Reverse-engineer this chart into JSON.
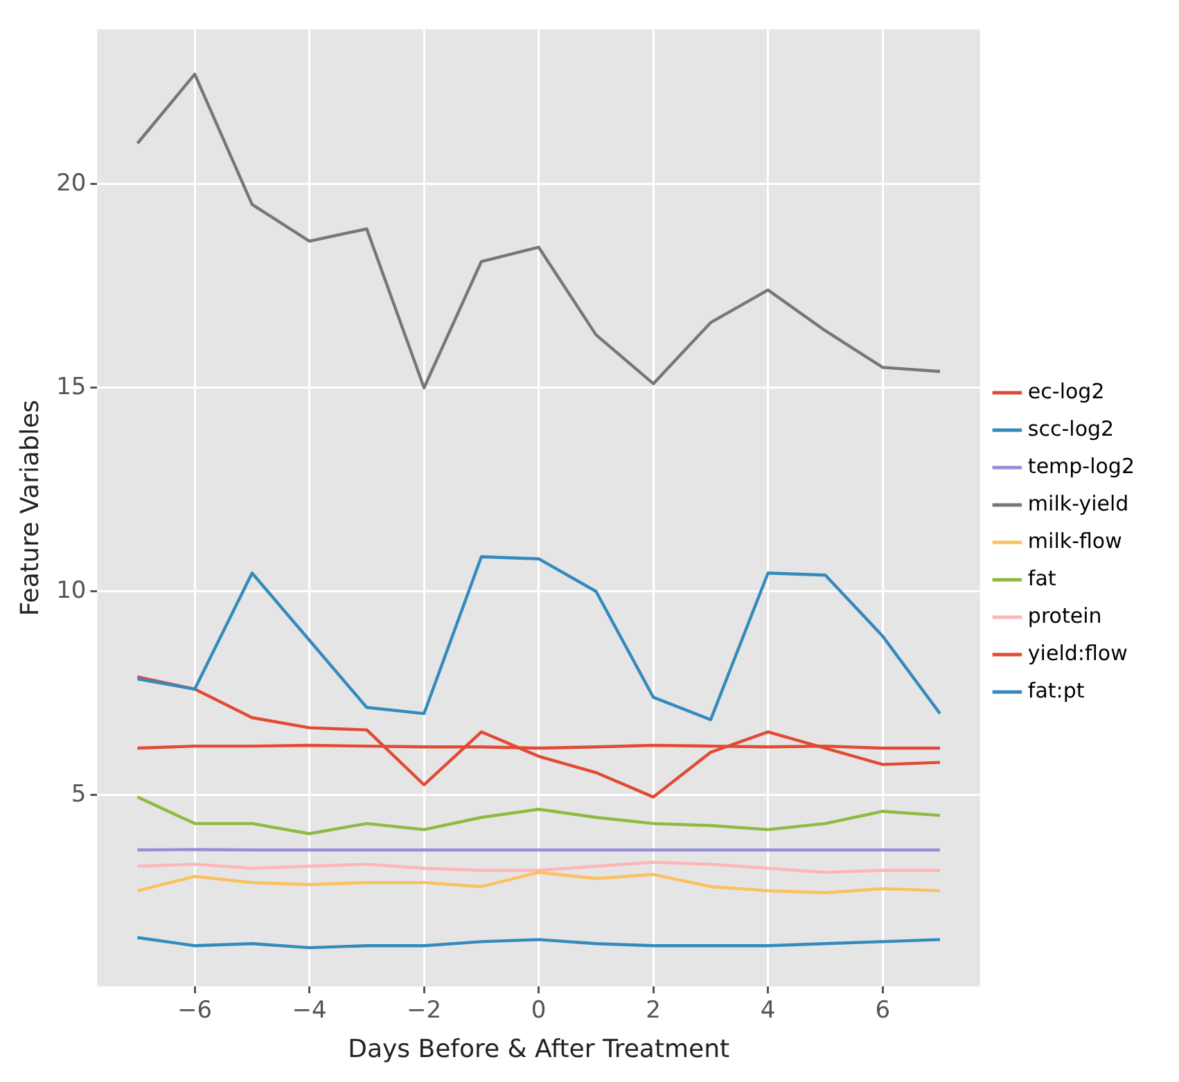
{
  "chart_data": {
    "type": "line",
    "xlabel": "Days Before & After Treatment",
    "ylabel": "Feature Variables",
    "x": [
      -7,
      -6,
      -5,
      -4,
      -3,
      -2,
      -1,
      0,
      1,
      2,
      3,
      4,
      5,
      6,
      7
    ],
    "xlim": [
      -7.7,
      7.7
    ],
    "xticks": [
      -6,
      -4,
      -2,
      0,
      2,
      4,
      6
    ],
    "ylim": [
      0.3,
      23.8
    ],
    "yticks": [
      5,
      10,
      15,
      20
    ],
    "grid": true,
    "legend": "right",
    "marker": "none",
    "line_style": "solid",
    "series": [
      {
        "name": "ec-log2",
        "color": "#e24a33",
        "values": [
          6.15,
          6.2,
          6.2,
          6.22,
          6.2,
          6.18,
          6.18,
          6.15,
          6.18,
          6.22,
          6.2,
          6.18,
          6.2,
          6.15,
          6.15
        ]
      },
      {
        "name": "scc-log2",
        "color": "#348abd",
        "values": [
          7.85,
          7.6,
          10.45,
          8.8,
          7.15,
          7.0,
          10.85,
          10.8,
          10.0,
          7.4,
          6.85,
          10.45,
          10.4,
          8.9,
          7.0
        ]
      },
      {
        "name": "temp-log2",
        "color": "#988ed5",
        "values": [
          3.65,
          3.66,
          3.65,
          3.65,
          3.65,
          3.65,
          3.65,
          3.65,
          3.65,
          3.65,
          3.65,
          3.65,
          3.65,
          3.65,
          3.65
        ]
      },
      {
        "name": "milk-yield",
        "color": "#777777",
        "values": [
          21.0,
          22.7,
          19.5,
          18.6,
          18.9,
          15.0,
          18.1,
          18.45,
          16.3,
          15.1,
          16.6,
          17.4,
          16.4,
          15.5,
          15.4
        ]
      },
      {
        "name": "milk-flow",
        "color": "#fbc15e",
        "values": [
          2.65,
          3.0,
          2.85,
          2.8,
          2.85,
          2.85,
          2.75,
          3.1,
          2.95,
          3.05,
          2.75,
          2.65,
          2.6,
          2.7,
          2.65
        ]
      },
      {
        "name": "fat",
        "color": "#8eba42",
        "values": [
          4.95,
          4.3,
          4.3,
          4.05,
          4.3,
          4.15,
          4.45,
          4.65,
          4.45,
          4.3,
          4.25,
          4.15,
          4.3,
          4.6,
          4.5
        ]
      },
      {
        "name": "protein",
        "color": "#ffb5b8",
        "values": [
          3.25,
          3.3,
          3.2,
          3.25,
          3.3,
          3.2,
          3.15,
          3.15,
          3.25,
          3.35,
          3.3,
          3.2,
          3.1,
          3.15,
          3.15
        ]
      },
      {
        "name": "yield:flow",
        "color": "#e24a33",
        "values": [
          7.9,
          7.6,
          6.9,
          6.65,
          6.6,
          5.25,
          6.55,
          5.95,
          5.55,
          4.95,
          6.05,
          6.55,
          6.15,
          5.75,
          5.8
        ]
      },
      {
        "name": "fat:pt",
        "color": "#348abd",
        "values": [
          1.5,
          1.3,
          1.35,
          1.25,
          1.3,
          1.3,
          1.4,
          1.45,
          1.35,
          1.3,
          1.3,
          1.3,
          1.35,
          1.4,
          1.45
        ]
      }
    ]
  }
}
